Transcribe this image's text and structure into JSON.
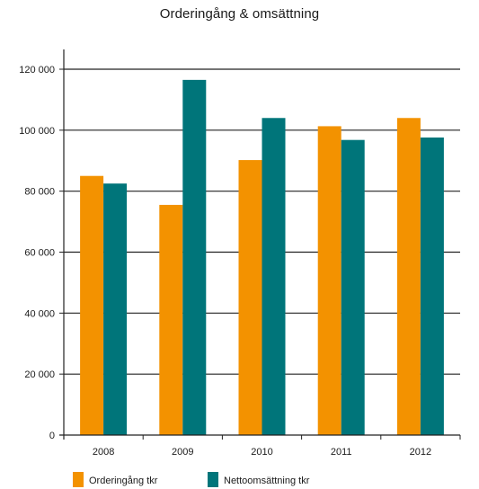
{
  "chart_data": {
    "type": "bar",
    "title": "Orderingång & omsättning",
    "xlabel": "",
    "ylabel": "",
    "categories": [
      "2008",
      "2009",
      "2010",
      "2011",
      "2012"
    ],
    "series": [
      {
        "name": "Orderingång tkr",
        "color": "#f39200",
        "values": [
          85000,
          75500,
          90200,
          101300,
          104000
        ]
      },
      {
        "name": "Nettoomsättning tkr",
        "color": "#00757a",
        "values": [
          82500,
          116500,
          104000,
          96800,
          97600
        ]
      }
    ],
    "ylim": [
      0,
      120000
    ],
    "yticks": [
      0,
      20000,
      40000,
      60000,
      80000,
      100000,
      120000
    ],
    "ytick_labels": [
      "0",
      "20 000",
      "40 000",
      "60 000",
      "80 000",
      "100 000",
      "120 000"
    ],
    "grid": true,
    "legend_position": "bottom-left"
  }
}
